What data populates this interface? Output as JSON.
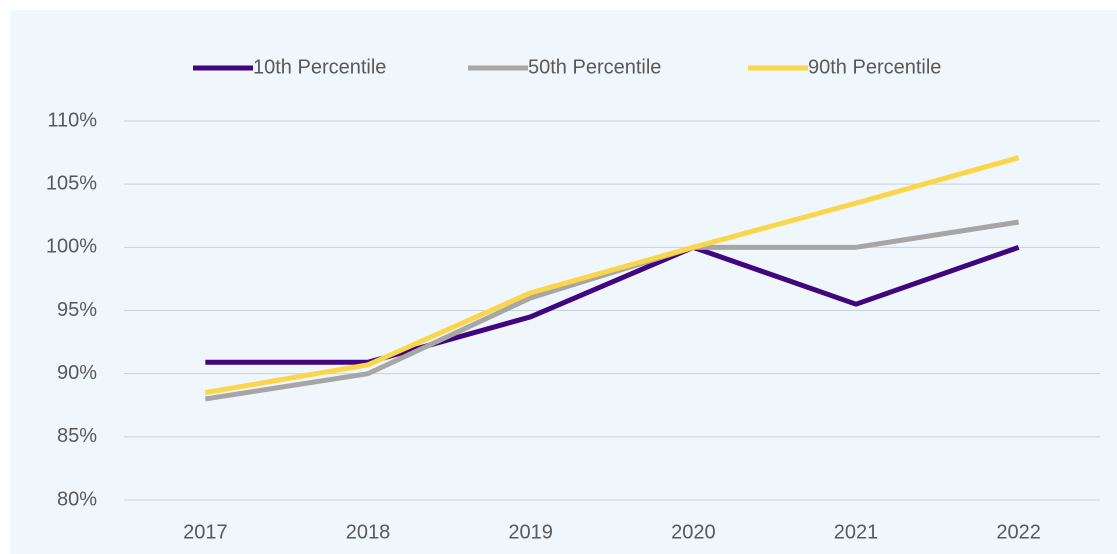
{
  "chart_data": {
    "type": "line",
    "categories": [
      "2017",
      "2018",
      "2019",
      "2020",
      "2021",
      "2022"
    ],
    "series": [
      {
        "name": "10th Percentile",
        "color": "#41057f",
        "values": [
          90.9,
          90.9,
          94.5,
          100,
          95.5,
          100
        ]
      },
      {
        "name": "50th Percentile",
        "color": "#a6a6a6",
        "values": [
          88.0,
          90.0,
          96.0,
          100,
          100,
          102.0
        ]
      },
      {
        "name": "90th Percentile",
        "color": "#fbd54a",
        "values": [
          88.5,
          90.7,
          96.4,
          100,
          103.5,
          107.1
        ]
      }
    ],
    "ylim": [
      80,
      110
    ],
    "yticks": [
      {
        "value": 80,
        "label": "80%"
      },
      {
        "value": 85,
        "label": "85%"
      },
      {
        "value": 90,
        "label": "90%"
      },
      {
        "value": 95,
        "label": "95%"
      },
      {
        "value": 100,
        "label": "100%"
      },
      {
        "value": 105,
        "label": "105%"
      },
      {
        "value": 110,
        "label": "110%"
      }
    ],
    "grid": true,
    "legend": "top"
  }
}
